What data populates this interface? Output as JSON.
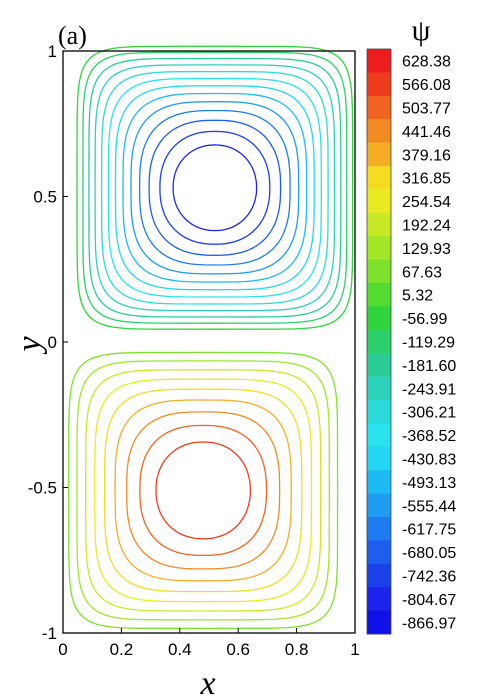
{
  "chart_data": {
    "type": "contour",
    "panel_label": "(a)",
    "xlabel": "x",
    "ylabel": "y",
    "colorbar_title": "ψ",
    "xlim": [
      0,
      1
    ],
    "ylim": [
      -1,
      1
    ],
    "x_ticks": [
      0,
      0.2,
      0.4,
      0.6,
      0.8,
      1
    ],
    "x_tick_labels": [
      "0",
      "0.2",
      "0.4",
      "0.6",
      "0.8",
      "1"
    ],
    "y_ticks": [
      -1,
      -0.5,
      0,
      0.5,
      1
    ],
    "y_tick_labels": [
      "-1",
      "-0.5",
      "0",
      "0.5",
      "1"
    ],
    "levels": [
      628.38,
      566.08,
      503.77,
      441.46,
      379.16,
      316.85,
      254.54,
      192.24,
      129.93,
      67.63,
      5.32,
      -56.99,
      -119.29,
      -181.6,
      -243.91,
      -306.21,
      -368.52,
      -430.83,
      -493.13,
      -555.44,
      -617.75,
      -680.05,
      -742.36,
      -804.67,
      -866.97
    ],
    "level_labels": [
      "628.38",
      "566.08",
      "503.77",
      "441.46",
      "379.16",
      "316.85",
      "254.54",
      "192.24",
      "129.93",
      "67.63",
      "5.32",
      "-56.99",
      "-119.29",
      "-181.60",
      "-243.91",
      "-306.21",
      "-368.52",
      "-430.83",
      "-493.13",
      "-555.44",
      "-617.75",
      "-680.05",
      "-742.36",
      "-804.67",
      "-866.97"
    ],
    "colors": [
      "#ee1c1c",
      "#ee3b1c",
      "#f06320",
      "#f28a22",
      "#f4ad24",
      "#f4dc22",
      "#eaea22",
      "#c8ea24",
      "#a2e628",
      "#7ee22c",
      "#52dc30",
      "#30d43c",
      "#2cd06a",
      "#2ccc96",
      "#2cd2bc",
      "#2cdada",
      "#28e2ee",
      "#22d6f4",
      "#1ebaf4",
      "#1e9cf0",
      "#1e7cf0",
      "#1e5eec",
      "#1a40ec",
      "#1a24ec",
      "#1010e8"
    ],
    "vortices": [
      {
        "name": "upper",
        "center_x": 0.52,
        "center_y": 0.53,
        "psi_max": -866.97
      },
      {
        "name": "lower",
        "center_x": 0.48,
        "center_y": -0.51,
        "psi_max": 628.38
      }
    ]
  }
}
